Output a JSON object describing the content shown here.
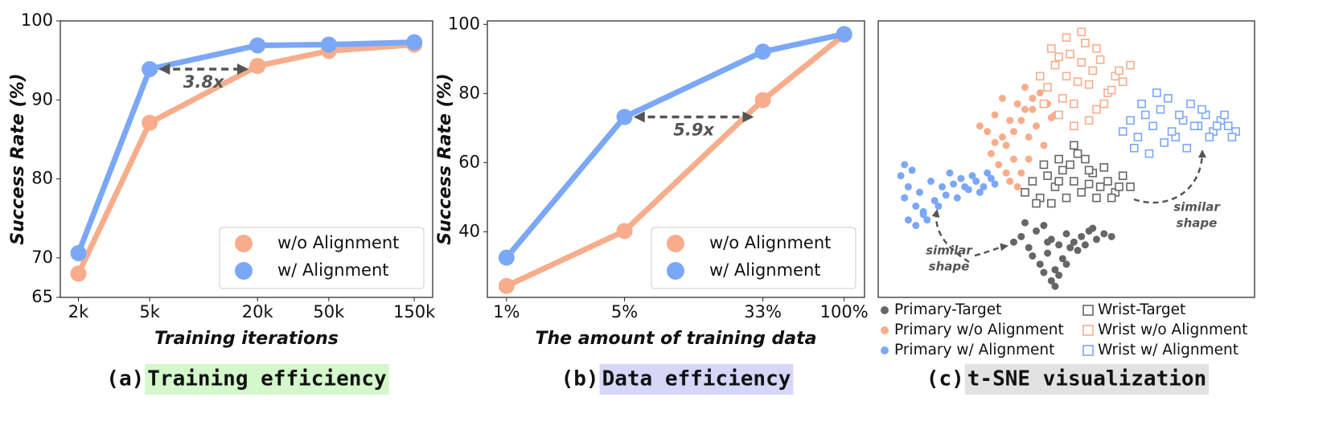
{
  "chart_data": [
    {
      "type": "line",
      "caption_label": "(a)",
      "caption": "Training efficiency",
      "caption_color": "#d4f7cc",
      "ylabel": "Success Rate (%)",
      "xlabel": "Training iterations",
      "xscale": "log",
      "x": [
        2000,
        5000,
        20000,
        50000,
        150000
      ],
      "xlim": [
        1585,
        190000
      ],
      "xticks": [
        {
          "value": 2000,
          "label": "2k"
        },
        {
          "value": 5000,
          "label": "5k"
        },
        {
          "value": 20000,
          "label": "20k"
        },
        {
          "value": 50000,
          "label": "50k"
        },
        {
          "value": 150000,
          "label": "150k"
        }
      ],
      "ylim": [
        65,
        100
      ],
      "yticks": [
        65,
        70,
        80,
        90,
        100
      ],
      "series": [
        {
          "name": "w/o Alignment",
          "color": "#f7ad8b",
          "values": [
            68.0,
            87.1,
            94.3,
            96.2,
            97.0
          ]
        },
        {
          "name": "w/ Alignment",
          "color": "#7ba7f7",
          "values": [
            70.6,
            93.9,
            96.9,
            97.0,
            97.3
          ]
        }
      ],
      "legend": "lower right",
      "annotations": [
        {
          "text": "3.8x",
          "x_from": 5000,
          "x_to": 20000,
          "y": 93.9
        }
      ]
    },
    {
      "type": "line",
      "caption_label": "(b)",
      "caption": "Data efficiency",
      "caption_color": "#d6d6f8",
      "ylabel": "Success Rate (%)",
      "xlabel": "The amount of training data",
      "xscale": "log",
      "x": [
        1,
        5,
        33,
        100
      ],
      "xlim": [
        0.77,
        132
      ],
      "xticks": [
        {
          "value": 1,
          "label": "1%"
        },
        {
          "value": 5,
          "label": "5%"
        },
        {
          "value": 33,
          "label": "33%"
        },
        {
          "value": 100,
          "label": "100%"
        }
      ],
      "ylim": [
        21,
        101
      ],
      "yticks": [
        40,
        60,
        80,
        100
      ],
      "series": [
        {
          "name": "w/o Alignment",
          "color": "#f7ad8b",
          "values": [
            24.3,
            40.2,
            78.1,
            97.0
          ]
        },
        {
          "name": "w/ Alignment",
          "color": "#7ba7f7",
          "values": [
            32.5,
            73.2,
            92.1,
            97.2
          ]
        }
      ],
      "legend": "lower right",
      "annotations": [
        {
          "text": "5.9x",
          "x_from": 5,
          "x_to": 33,
          "y": 73.2
        }
      ]
    },
    {
      "type": "scatter",
      "caption_label": "(c)",
      "caption": "t-SNE visualization",
      "caption_color": "#e2e2e2",
      "xlim": [
        0,
        100
      ],
      "ylim": [
        0,
        100
      ],
      "legend": "below",
      "series": [
        {
          "name": "Primary-Target",
          "color": "#666666",
          "marker": "circle",
          "filled": true,
          "x": [
            36,
            38,
            40,
            42,
            44,
            46,
            48,
            50,
            52,
            54,
            56,
            58,
            60,
            62,
            41,
            43,
            45,
            47,
            49,
            51,
            53,
            55,
            57,
            39,
            44,
            46,
            48,
            50,
            47,
            45
          ],
          "y": [
            20,
            22,
            18,
            24,
            26,
            21,
            19,
            23,
            20,
            22,
            24,
            21,
            23,
            22,
            15,
            12,
            16,
            10,
            14,
            18,
            17,
            19,
            25,
            27,
            9,
            6,
            8,
            12,
            4,
            20
          ]
        },
        {
          "name": "Primary w/o Alignment",
          "color": "#f7ad8b",
          "marker": "circle",
          "filled": true,
          "x": [
            27,
            29,
            31,
            33,
            35,
            37,
            39,
            41,
            43,
            45,
            47,
            30,
            32,
            34,
            36,
            38,
            40,
            42,
            44,
            46,
            35,
            37,
            39,
            41,
            33,
            31,
            36,
            40,
            38,
            34
          ],
          "y": [
            62,
            60,
            66,
            58,
            64,
            70,
            68,
            72,
            74,
            70,
            66,
            52,
            48,
            55,
            50,
            45,
            58,
            62,
            55,
            65,
            42,
            40,
            76,
            68,
            72,
            56,
            60,
            50,
            64,
            45
          ]
        },
        {
          "name": "Primary w/ Alignment",
          "color": "#7ba7f7",
          "marker": "circle",
          "filled": true,
          "x": [
            6,
            8,
            7,
            10,
            12,
            9,
            11,
            14,
            15,
            13,
            17,
            18,
            20,
            16,
            22,
            24,
            21,
            26,
            28,
            25,
            30,
            27,
            19,
            23,
            8,
            10,
            12,
            7,
            29,
            31
          ],
          "y": [
            44,
            40,
            36,
            33,
            30,
            46,
            38,
            42,
            35,
            28,
            40,
            37,
            41,
            33,
            43,
            39,
            36,
            42,
            40,
            44,
            43,
            38,
            45,
            40,
            28,
            26,
            31,
            48,
            45,
            41
          ]
        },
        {
          "name": "Wrist-Target",
          "color": "#666666",
          "marker": "square",
          "filled": false,
          "x": [
            39,
            41,
            43,
            45,
            47,
            49,
            51,
            53,
            55,
            57,
            59,
            61,
            63,
            65,
            67,
            42,
            44,
            46,
            48,
            50,
            52,
            54,
            56,
            58,
            60,
            62,
            64,
            48,
            52,
            56
          ],
          "y": [
            38,
            42,
            36,
            44,
            40,
            46,
            48,
            52,
            50,
            45,
            40,
            42,
            38,
            44,
            40,
            34,
            48,
            34,
            50,
            36,
            42,
            38,
            46,
            36,
            47,
            36,
            40,
            42,
            55,
            41
          ]
        },
        {
          "name": "Wrist w/o Alignment",
          "color": "#f7ad8b",
          "marker": "square",
          "filled": false,
          "x": [
            43,
            45,
            47,
            49,
            51,
            53,
            55,
            57,
            59,
            61,
            63,
            65,
            67,
            44,
            46,
            48,
            50,
            52,
            54,
            56,
            58,
            60,
            62,
            64,
            50,
            54,
            58,
            52,
            56,
            48
          ],
          "y": [
            80,
            76,
            84,
            72,
            88,
            78,
            92,
            82,
            86,
            74,
            80,
            78,
            84,
            70,
            90,
            66,
            94,
            70,
            85,
            64,
            90,
            70,
            75,
            82,
            80,
            96,
            68,
            62,
            77,
            87
          ]
        },
        {
          "name": "Wrist w/ Alignment",
          "color": "#7ba7f7",
          "marker": "square",
          "filled": false,
          "x": [
            65,
            67,
            69,
            71,
            73,
            75,
            77,
            79,
            81,
            83,
            85,
            87,
            89,
            91,
            93,
            95,
            68,
            70,
            72,
            74,
            76,
            78,
            80,
            82,
            84,
            86,
            88,
            90,
            92,
            94
          ],
          "y": [
            60,
            64,
            58,
            66,
            62,
            68,
            72,
            58,
            64,
            70,
            62,
            66,
            60,
            64,
            62,
            60,
            54,
            70,
            52,
            74,
            56,
            60,
            66,
            54,
            62,
            68,
            58,
            62,
            66,
            58
          ]
        }
      ],
      "annotations": [
        {
          "text": [
            "similar",
            "shape"
          ]
        },
        {
          "text": [
            "similar",
            "shape"
          ]
        }
      ]
    }
  ]
}
